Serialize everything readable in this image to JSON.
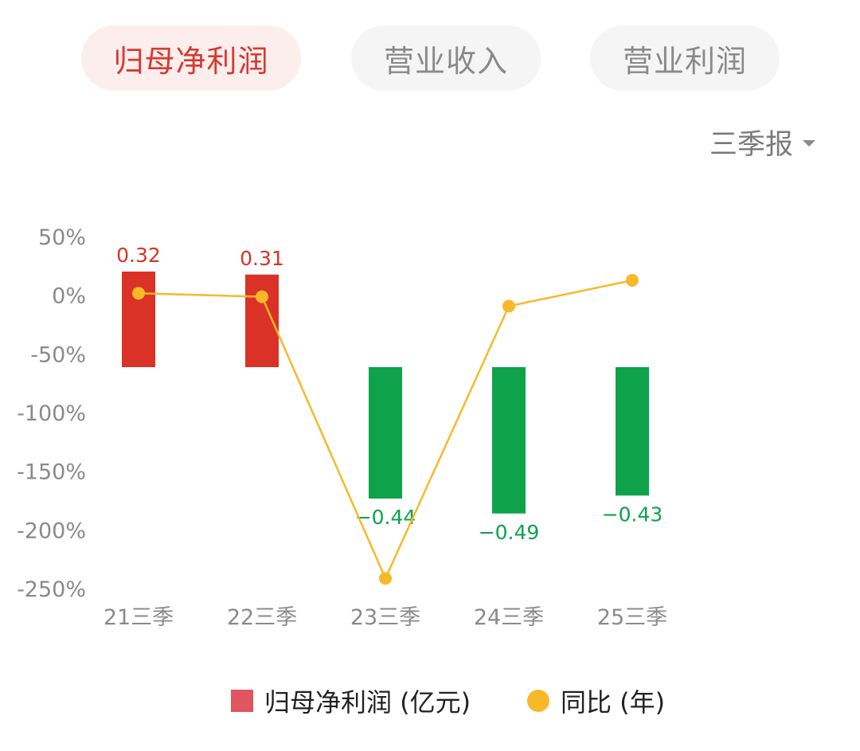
{
  "tabs": [
    {
      "label": "归母净利润",
      "active": true
    },
    {
      "label": "营业收入",
      "active": false
    },
    {
      "label": "营业利润",
      "active": false
    }
  ],
  "period_selector": {
    "label": "三季报",
    "icon": "caret-down-icon"
  },
  "colors": {
    "positive_bar": "#da3226",
    "negative_bar": "#0ea24b",
    "line": "#f7b928",
    "axis_text": "#8a8a8a",
    "legend_bar": "#e0555e"
  },
  "chart_data": {
    "type": "bar+line",
    "categories": [
      "21三季",
      "22三季",
      "23三季",
      "24三季",
      "25三季"
    ],
    "bars": {
      "name": "归母净利润 (亿元)",
      "values": [
        0.32,
        0.31,
        -0.44,
        -0.49,
        -0.43
      ],
      "labels": [
        "0.32",
        "0.31",
        "−0.44",
        "−0.49",
        "−0.43"
      ]
    },
    "line": {
      "name": "同比 (年)",
      "values": [
        1,
        -2,
        -242,
        -10,
        12
      ]
    },
    "y_axis": {
      "ticks": [
        "50%",
        "0%",
        "-50%",
        "-100%",
        "-150%",
        "-200%",
        "-250%"
      ],
      "tick_values": [
        50,
        0,
        -50,
        -100,
        -150,
        -200,
        -250
      ],
      "range": [
        -250,
        50
      ]
    },
    "grid": false,
    "legend_position": "bottom"
  }
}
